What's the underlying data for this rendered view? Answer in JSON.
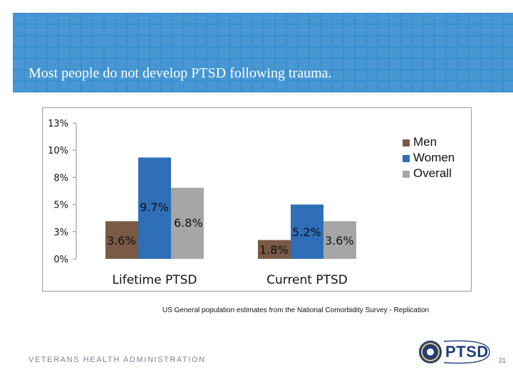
{
  "slide": {
    "title": "Most people do not develop PTSD following trauma.",
    "caption": "US General population estimates from the National Comorbidity Survey - Replication",
    "footer": "VETERANS HEALTH ADMINISTRATION",
    "logo_text": "PTSD",
    "page_number": "21"
  },
  "colors": {
    "banner": "#3a8fd0",
    "men": "#7a5a46",
    "women": "#2e6fb8",
    "overall": "#a6a6a6"
  },
  "chart_data": {
    "type": "bar",
    "title": "",
    "xlabel": "",
    "ylabel": "",
    "ylim": [
      0,
      13
    ],
    "y_ticks": [
      {
        "value": 0,
        "label": "0%"
      },
      {
        "value": 2.6,
        "label": "3%"
      },
      {
        "value": 5.2,
        "label": "5%"
      },
      {
        "value": 7.8,
        "label": "8%"
      },
      {
        "value": 10.4,
        "label": "10%"
      },
      {
        "value": 13,
        "label": "13%"
      }
    ],
    "categories": [
      "Lifetime PTSD",
      "Current PTSD"
    ],
    "series": [
      {
        "name": "Men",
        "values": [
          3.6,
          1.8
        ],
        "labels": [
          "3.6%",
          "1.8%"
        ]
      },
      {
        "name": "Women",
        "values": [
          9.7,
          5.2
        ],
        "labels": [
          "9.7%",
          "5.2%"
        ]
      },
      {
        "name": "Overall",
        "values": [
          6.8,
          3.6
        ],
        "labels": [
          "6.8%",
          "3.6%"
        ]
      }
    ],
    "legend": "right",
    "grid": false
  }
}
